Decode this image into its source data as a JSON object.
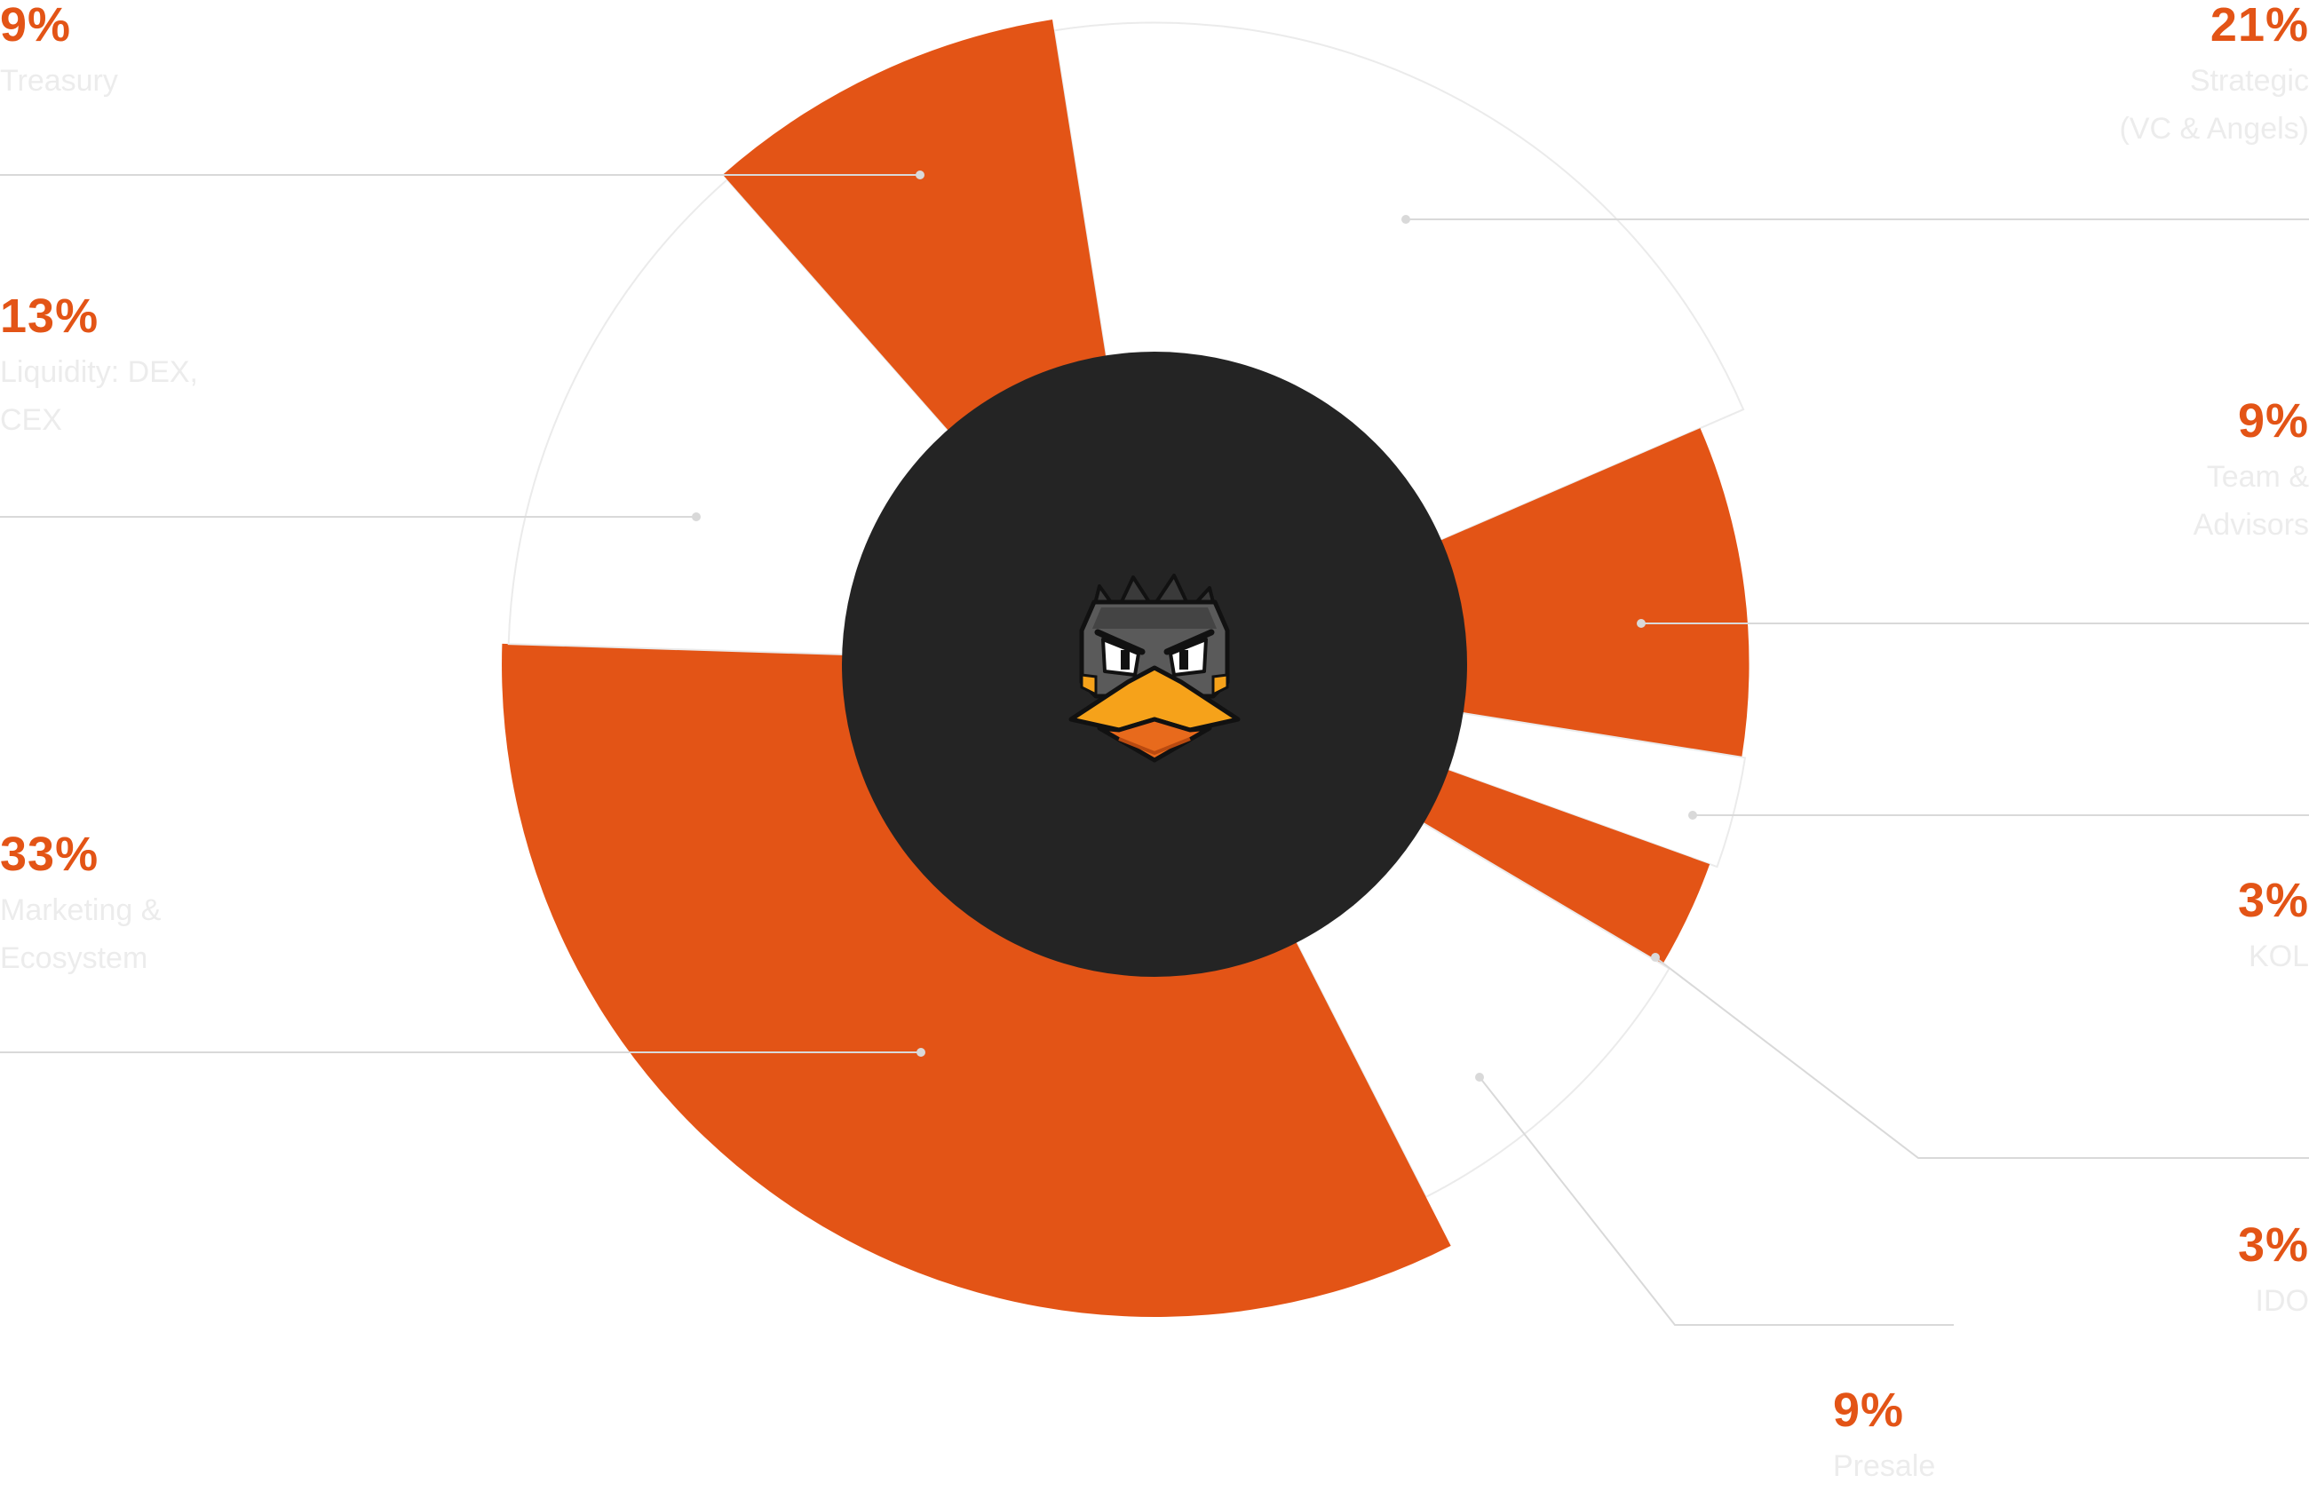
{
  "colors": {
    "accent": "#E35416",
    "light_segment": "#FFFFFF",
    "outline": "#EBEBEB",
    "center": "#242424",
    "label_text": "#ECECEC",
    "leader": "#D9D9D9"
  },
  "logo": {
    "icon": "duck-mascot-icon"
  },
  "chart_data": {
    "type": "pie",
    "variant": "polar-area donut",
    "start_angle_deg": -9,
    "slices": [
      {
        "label": "Strategic\n(VC & Angels)",
        "value": 21,
        "pct_text": "21%",
        "color": "#FFFFFF",
        "radius_rel": 0.983
      },
      {
        "label": "Team &\nAdvisors",
        "value": 9,
        "pct_text": "9%",
        "color": "#E35416",
        "radius_rel": 0.911
      },
      {
        "label": "KOL",
        "value": 3,
        "pct_text": "3%",
        "color": "#FFFFFF",
        "radius_rel": 0.916
      },
      {
        "label": "IDO",
        "value": 3,
        "pct_text": "3%",
        "color": "#E35416",
        "radius_rel": 0.904
      },
      {
        "label": "Presale",
        "value": 9,
        "pct_text": "9%",
        "color": "#FFFFFF",
        "radius_rel": 0.916
      },
      {
        "label": "Marketing &\nEcosystem",
        "value": 33,
        "pct_text": "33%",
        "color": "#E35416",
        "radius_rel": 1.0
      },
      {
        "label": "Liquidity: DEX,\nCEX",
        "value": 13,
        "pct_text": "13%",
        "color": "#FFFFFF",
        "radius_rel": 0.99
      },
      {
        "label": "Treasury",
        "value": 9,
        "pct_text": "9%",
        "color": "#E35416",
        "radius_rel": 1.0
      }
    ]
  }
}
